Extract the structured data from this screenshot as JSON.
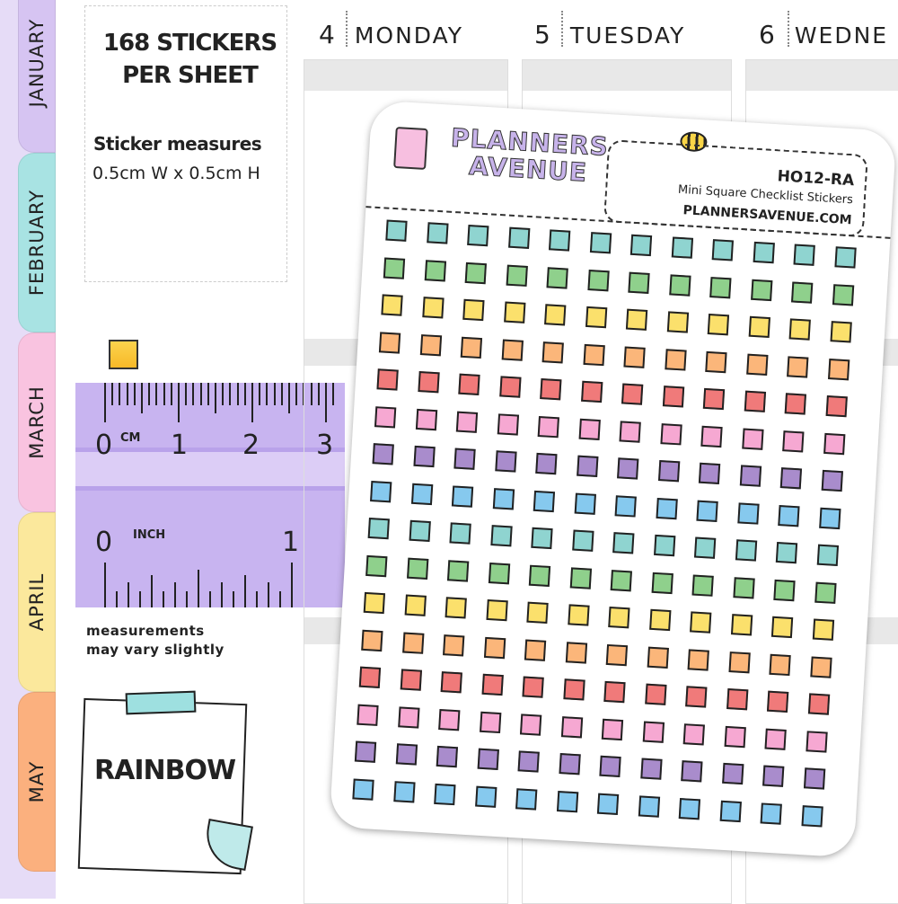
{
  "tabs": [
    {
      "label": "JANUARY",
      "color": "#d6c4f2"
    },
    {
      "label": "FEBRUARY",
      "color": "#a8e3e3"
    },
    {
      "label": "MARCH",
      "color": "#f9c3e0"
    },
    {
      "label": "APRIL",
      "color": "#fbe89c"
    },
    {
      "label": "MAY",
      "color": "#fbb07e"
    }
  ],
  "info": {
    "title": "168 STICKERS PER SHEET",
    "measure_label": "Sticker measures",
    "measure_value": "0.5cm W  x  0.5cm H",
    "note_line1": "measurements",
    "note_line2": "may vary slightly"
  },
  "ruler": {
    "cm_unit": "CM",
    "cm_numbers": [
      "0",
      "1",
      "2",
      "3"
    ],
    "inch_unit": "INCH",
    "inch_numbers": [
      "0",
      "1"
    ]
  },
  "paper_note": "RAINBOW",
  "days": [
    {
      "num": "4",
      "name": "MONDAY"
    },
    {
      "num": "5",
      "name": "TUESDAY"
    },
    {
      "num": "6",
      "name": "WEDNE"
    }
  ],
  "sheet": {
    "logo_line1": "PLANNERS",
    "logo_line2": "AVENUE",
    "code": "HO12-RA",
    "subtitle": "Mini Square Checklist Stickers",
    "site": "PLANNERSAVENUE.COM",
    "row_colors": [
      "#8fd4d0",
      "#8fd08c",
      "#fbe06c",
      "#fbb67a",
      "#f07a7a",
      "#f6a8d2",
      "#a98ccc",
      "#86c9ee"
    ]
  }
}
